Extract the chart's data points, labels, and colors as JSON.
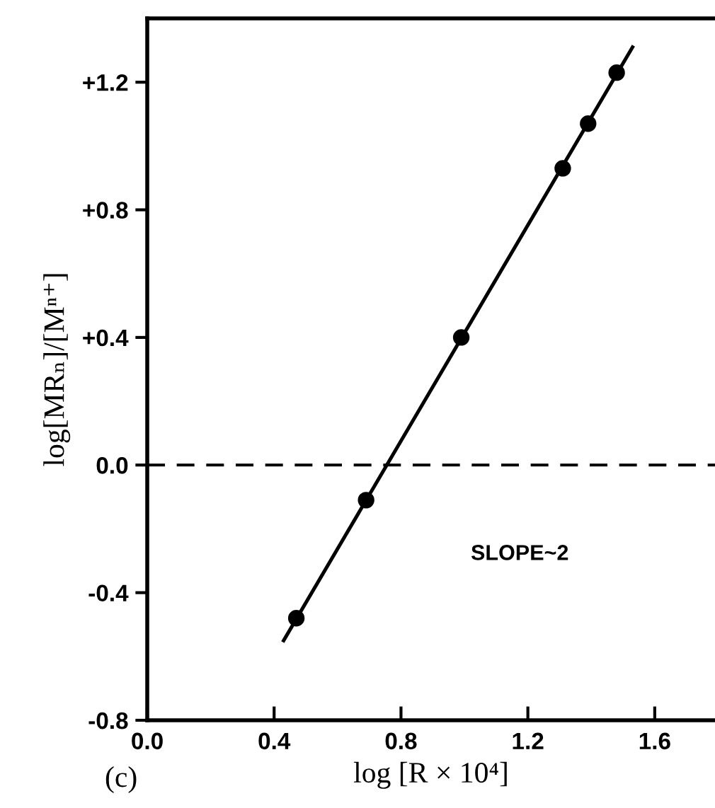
{
  "chart_data": {
    "type": "scatter",
    "xlabel": "log [R × 10⁴]",
    "ylabel": "log[MRₙ]/[Mⁿ⁺]",
    "annotations": [
      "SLOPE~2",
      "(c)"
    ],
    "series": [
      {
        "color": "#000000",
        "marker": "circle",
        "x": [
          0.47,
          0.69,
          0.99,
          1.31,
          1.39,
          1.48
        ],
        "values": [
          -0.48,
          -0.11,
          0.4,
          0.93,
          1.07,
          1.23
        ]
      },
      {
        "type": "line",
        "color": "#000000",
        "marker": "none",
        "line_style": "solid",
        "x": [
          0.43,
          1.53
        ],
        "values": [
          -0.55,
          1.31
        ]
      }
    ],
    "ref_lines": [
      {
        "axis": "y",
        "value": 0.0,
        "color": "#000000",
        "line_style": "dashed"
      }
    ],
    "xlim": [
      0.0,
      1.79
    ],
    "ylim": [
      -0.8,
      1.4
    ],
    "xticks": [
      {
        "value": 0.0,
        "label": "0.0"
      },
      0.4,
      0.8,
      1.2,
      1.6
    ],
    "yticks": [
      {
        "value": -0.8,
        "label": "-0.8"
      },
      {
        "value": -0.4,
        "label": "-0.4"
      },
      {
        "value": 0.0,
        "label": "0.0"
      },
      {
        "value": 0.4,
        "label": "+0.4"
      },
      {
        "value": 0.8,
        "label": "+0.8"
      },
      {
        "value": 1.2,
        "label": "+1.2"
      }
    ],
    "grid": false,
    "legend": false
  }
}
